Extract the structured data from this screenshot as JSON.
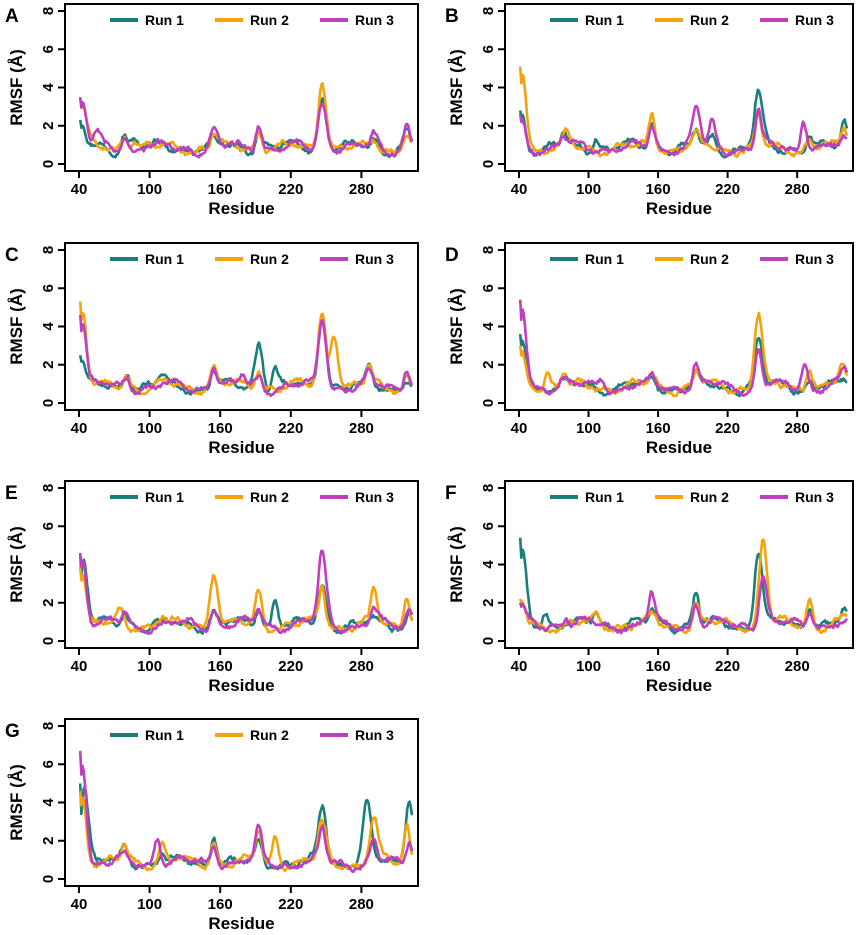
{
  "figure": {
    "colors": {
      "run1": "#1a7f7a",
      "run2": "#f5a30a",
      "run3": "#c03fc0",
      "frame": "#000000"
    }
  },
  "chart_data": [
    {
      "panel": "A",
      "type": "line",
      "xlabel": "Residue",
      "ylabel": "RMSF (Å)",
      "xticks": [
        "40",
        "100",
        "160",
        "220",
        "280"
      ],
      "yticks": [
        "0",
        "2",
        "4",
        "6",
        "8"
      ],
      "xlim": [
        40,
        323
      ],
      "ylim": [
        0,
        8
      ],
      "legend_position": "top",
      "series": [
        {
          "name": "Run 1",
          "color": "#1a7f7a",
          "peaks": [
            [
              42,
              2.3
            ],
            [
              78,
              1.6
            ],
            [
              86,
              1.4
            ],
            [
              110,
              1.0
            ],
            [
              154,
              1.5
            ],
            [
              192,
              1.8
            ],
            [
              246,
              3.6
            ],
            [
              290,
              1.3
            ],
            [
              318,
              2.0
            ]
          ]
        },
        {
          "name": "Run 2",
          "color": "#f5a30a",
          "peaks": [
            [
              42,
              3.4
            ],
            [
              78,
              1.4
            ],
            [
              86,
              1.2
            ],
            [
              154,
              1.7
            ],
            [
              192,
              1.8
            ],
            [
              246,
              4.4
            ],
            [
              290,
              1.2
            ],
            [
              318,
              1.6
            ]
          ]
        },
        {
          "name": "Run 3",
          "color": "#c03fc0",
          "peaks": [
            [
              42,
              3.5
            ],
            [
              55,
              1.9
            ],
            [
              78,
              1.3
            ],
            [
              100,
              1.0
            ],
            [
              154,
              2.1
            ],
            [
              192,
              2.1
            ],
            [
              246,
              3.4
            ],
            [
              290,
              1.8
            ],
            [
              318,
              2.2
            ]
          ]
        }
      ]
    },
    {
      "panel": "B",
      "type": "line",
      "xlabel": "Residue",
      "ylabel": "RMSF (Å)",
      "xticks": [
        "40",
        "100",
        "160",
        "220",
        "280"
      ],
      "yticks": [
        "0",
        "2",
        "4",
        "6",
        "8"
      ],
      "xlim": [
        40,
        323
      ],
      "ylim": [
        0,
        8
      ],
      "legend_position": "top",
      "series": [
        {
          "name": "Run 1",
          "color": "#1a7f7a",
          "peaks": [
            [
              42,
              2.8
            ],
            [
              78,
              1.7
            ],
            [
              106,
              1.3
            ],
            [
              154,
              2.2
            ],
            [
              192,
              1.9
            ],
            [
              206,
              1.6
            ],
            [
              246,
              4.1
            ],
            [
              290,
              1.5
            ],
            [
              320,
              2.5
            ]
          ]
        },
        {
          "name": "Run 2",
          "color": "#f5a30a",
          "peaks": [
            [
              42,
              5.1
            ],
            [
              80,
              2.0
            ],
            [
              154,
              2.8
            ],
            [
              192,
              1.8
            ],
            [
              246,
              2.8
            ],
            [
              290,
              1.3
            ],
            [
              320,
              2.0
            ]
          ]
        },
        {
          "name": "Run 3",
          "color": "#c03fc0",
          "peaks": [
            [
              42,
              2.6
            ],
            [
              78,
              1.4
            ],
            [
              154,
              2.0
            ],
            [
              192,
              3.2
            ],
            [
              206,
              2.5
            ],
            [
              246,
              3.0
            ],
            [
              285,
              2.3
            ],
            [
              320,
              1.5
            ]
          ]
        }
      ]
    },
    {
      "panel": "C",
      "type": "line",
      "xlabel": "Residue",
      "ylabel": "RMSF (Å)",
      "xticks": [
        "40",
        "100",
        "160",
        "220",
        "280"
      ],
      "yticks": [
        "0",
        "2",
        "4",
        "6",
        "8"
      ],
      "xlim": [
        40,
        323
      ],
      "ylim": [
        0,
        8
      ],
      "legend_position": "top",
      "series": [
        {
          "name": "Run 1",
          "color": "#1a7f7a",
          "peaks": [
            [
              42,
              2.5
            ],
            [
              80,
              1.6
            ],
            [
              110,
              1.6
            ],
            [
              154,
              1.8
            ],
            [
              192,
              3.2
            ],
            [
              206,
              2.0
            ],
            [
              246,
              4.8
            ],
            [
              286,
              2.2
            ],
            [
              318,
              1.2
            ]
          ]
        },
        {
          "name": "Run 2",
          "color": "#f5a30a",
          "peaks": [
            [
              42,
              5.3
            ],
            [
              80,
              1.5
            ],
            [
              110,
              1.3
            ],
            [
              154,
              2.0
            ],
            [
              192,
              1.7
            ],
            [
              246,
              5.0
            ],
            [
              256,
              3.7
            ],
            [
              286,
              2.0
            ],
            [
              318,
              1.5
            ]
          ]
        },
        {
          "name": "Run 3",
          "color": "#c03fc0",
          "peaks": [
            [
              42,
              4.6
            ],
            [
              80,
              1.4
            ],
            [
              154,
              1.9
            ],
            [
              178,
              1.6
            ],
            [
              192,
              1.5
            ],
            [
              246,
              4.5
            ],
            [
              286,
              1.9
            ],
            [
              318,
              1.8
            ]
          ]
        }
      ]
    },
    {
      "panel": "D",
      "type": "line",
      "xlabel": "Residue",
      "ylabel": "RMSF (Å)",
      "xticks": [
        "40",
        "100",
        "160",
        "220",
        "280"
      ],
      "yticks": [
        "0",
        "2",
        "4",
        "6",
        "8"
      ],
      "xlim": [
        40,
        323
      ],
      "ylim": [
        0,
        8
      ],
      "legend_position": "top",
      "series": [
        {
          "name": "Run 1",
          "color": "#1a7f7a",
          "peaks": [
            [
              42,
              3.6
            ],
            [
              78,
              1.3
            ],
            [
              154,
              1.5
            ],
            [
              192,
              1.8
            ],
            [
              246,
              3.5
            ],
            [
              290,
              1.2
            ],
            [
              320,
              1.3
            ]
          ]
        },
        {
          "name": "Run 2",
          "color": "#f5a30a",
          "peaks": [
            [
              42,
              3.0
            ],
            [
              64,
              1.8
            ],
            [
              78,
              1.6
            ],
            [
              154,
              1.7
            ],
            [
              192,
              1.8
            ],
            [
              246,
              4.9
            ],
            [
              290,
              1.8
            ],
            [
              318,
              2.2
            ]
          ]
        },
        {
          "name": "Run 3",
          "color": "#c03fc0",
          "peaks": [
            [
              42,
              5.4
            ],
            [
              78,
              1.5
            ],
            [
              110,
              1.2
            ],
            [
              154,
              1.6
            ],
            [
              192,
              2.2
            ],
            [
              246,
              3.0
            ],
            [
              286,
              2.2
            ],
            [
              320,
              2.0
            ]
          ]
        }
      ]
    },
    {
      "panel": "E",
      "type": "line",
      "xlabel": "Residue",
      "ylabel": "RMSF (Å)",
      "xticks": [
        "40",
        "100",
        "160",
        "220",
        "280"
      ],
      "yticks": [
        "0",
        "2",
        "4",
        "6",
        "8"
      ],
      "xlim": [
        40,
        323
      ],
      "ylim": [
        0,
        8
      ],
      "legend_position": "top",
      "series": [
        {
          "name": "Run 1",
          "color": "#1a7f7a",
          "peaks": [
            [
              43,
              4.5
            ],
            [
              78,
              1.5
            ],
            [
              110,
              1.1
            ],
            [
              154,
              1.7
            ],
            [
              192,
              1.7
            ],
            [
              206,
              2.2
            ],
            [
              246,
              3.1
            ],
            [
              290,
              1.3
            ],
            [
              320,
              1.4
            ]
          ]
        },
        {
          "name": "Run 2",
          "color": "#f5a30a",
          "peaks": [
            [
              42,
              3.9
            ],
            [
              74,
              1.9
            ],
            [
              110,
              1.3
            ],
            [
              154,
              3.6
            ],
            [
              192,
              2.9
            ],
            [
              246,
              3.0
            ],
            [
              290,
              2.9
            ],
            [
              318,
              2.5
            ]
          ]
        },
        {
          "name": "Run 3",
          "color": "#c03fc0",
          "peaks": [
            [
              42,
              4.6
            ],
            [
              78,
              1.6
            ],
            [
              154,
              1.8
            ],
            [
              192,
              1.6
            ],
            [
              246,
              5.0
            ],
            [
              290,
              1.8
            ],
            [
              320,
              1.8
            ]
          ]
        }
      ]
    },
    {
      "panel": "F",
      "type": "line",
      "xlabel": "Residue",
      "ylabel": "RMSF (Å)",
      "xticks": [
        "40",
        "100",
        "160",
        "220",
        "280"
      ],
      "yticks": [
        "0",
        "2",
        "4",
        "6",
        "8"
      ],
      "xlim": [
        40,
        323
      ],
      "ylim": [
        0,
        8
      ],
      "legend_position": "top",
      "series": [
        {
          "name": "Run 1",
          "color": "#1a7f7a",
          "peaks": [
            [
              42,
              5.4
            ],
            [
              62,
              1.5
            ],
            [
              106,
              1.6
            ],
            [
              154,
              1.8
            ],
            [
              192,
              2.7
            ],
            [
              246,
              4.9
            ],
            [
              290,
              1.7
            ],
            [
              320,
              1.8
            ]
          ]
        },
        {
          "name": "Run 2",
          "color": "#f5a30a",
          "peaks": [
            [
              42,
              2.2
            ],
            [
              106,
              1.5
            ],
            [
              154,
              1.6
            ],
            [
              192,
              2.2
            ],
            [
              250,
              5.6
            ],
            [
              290,
              2.3
            ],
            [
              320,
              1.5
            ]
          ]
        },
        {
          "name": "Run 3",
          "color": "#c03fc0",
          "peaks": [
            [
              42,
              2.0
            ],
            [
              80,
              1.1
            ],
            [
              154,
              2.7
            ],
            [
              192,
              2.0
            ],
            [
              250,
              3.5
            ],
            [
              290,
              1.4
            ],
            [
              320,
              1.0
            ]
          ]
        }
      ]
    },
    {
      "panel": "G",
      "type": "line",
      "xlabel": "Residue",
      "ylabel": "RMSF (Å)",
      "xticks": [
        "40",
        "100",
        "160",
        "220",
        "280"
      ],
      "yticks": [
        "0",
        "2",
        "4",
        "6",
        "8"
      ],
      "xlim": [
        40,
        323
      ],
      "ylim": [
        0,
        8
      ],
      "legend_position": "top",
      "series": [
        {
          "name": "Run 1",
          "color": "#1a7f7a",
          "peaks": [
            [
              44,
              5.0
            ],
            [
              78,
              2.0
            ],
            [
              110,
              1.3
            ],
            [
              154,
              2.3
            ],
            [
              192,
              2.2
            ],
            [
              246,
              4.0
            ],
            [
              284,
              4.3
            ],
            [
              320,
              4.3
            ]
          ]
        },
        {
          "name": "Run 2",
          "color": "#f5a30a",
          "peaks": [
            [
              42,
              4.6
            ],
            [
              78,
              1.8
            ],
            [
              110,
              2.0
            ],
            [
              154,
              2.0
            ],
            [
              192,
              2.6
            ],
            [
              206,
              2.3
            ],
            [
              246,
              3.2
            ],
            [
              290,
              3.4
            ],
            [
              318,
              3.0
            ]
          ]
        },
        {
          "name": "Run 3",
          "color": "#c03fc0",
          "peaks": [
            [
              42,
              6.7
            ],
            [
              78,
              1.5
            ],
            [
              106,
              2.2
            ],
            [
              154,
              1.8
            ],
            [
              192,
              3.0
            ],
            [
              246,
              3.0
            ],
            [
              290,
              2.2
            ],
            [
              320,
              2.0
            ]
          ]
        }
      ]
    }
  ]
}
